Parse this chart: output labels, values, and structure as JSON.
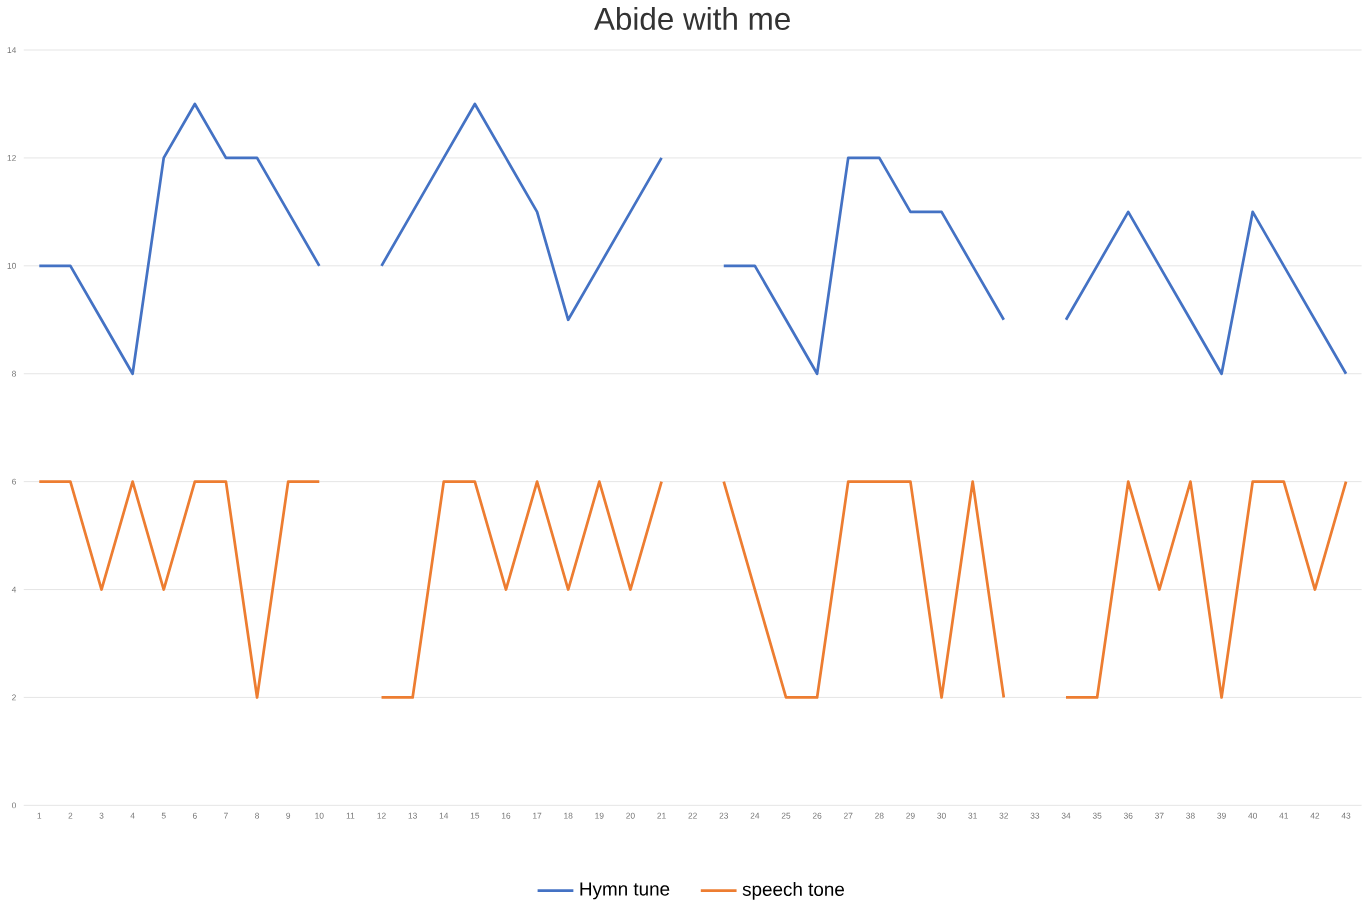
{
  "chart_data": {
    "type": "line",
    "title": "Abide with me",
    "categories": [
      "1",
      "2",
      "3",
      "4",
      "5",
      "6",
      "7",
      "8",
      "9",
      "10",
      "11",
      "12",
      "13",
      "14",
      "15",
      "16",
      "17",
      "18",
      "19",
      "20",
      "21",
      "22",
      "23",
      "24",
      "25",
      "26",
      "27",
      "28",
      "29",
      "30",
      "31",
      "32",
      "33",
      "34",
      "35",
      "36",
      "37",
      "38",
      "39",
      "40",
      "41",
      "42",
      "43"
    ],
    "series": [
      {
        "name": "Hymn tune",
        "color": "#4472c4",
        "values": [
          10,
          10,
          9,
          8,
          12,
          13,
          12,
          12,
          11,
          10,
          null,
          10,
          11,
          12,
          13,
          12,
          11,
          9,
          10,
          11,
          12,
          null,
          10,
          10,
          9,
          8,
          12,
          12,
          11,
          11,
          10,
          9,
          null,
          9,
          10,
          11,
          10,
          9,
          8,
          11,
          10,
          9,
          8
        ]
      },
      {
        "name": "speech tone",
        "color": "#ed7d31",
        "values": [
          6,
          6,
          4,
          6,
          4,
          6,
          6,
          2,
          6,
          6,
          null,
          2,
          2,
          6,
          6,
          4,
          6,
          4,
          6,
          4,
          6,
          null,
          6,
          4,
          2,
          2,
          6,
          6,
          6,
          2,
          6,
          2,
          null,
          2,
          2,
          6,
          4,
          6,
          2,
          6,
          6,
          4,
          6
        ]
      }
    ],
    "ylim": [
      0,
      14
    ],
    "yticks": [
      0,
      2,
      4,
      6,
      8,
      10,
      12,
      14
    ],
    "grid": "y",
    "legend": "bottom",
    "marker": "none",
    "line_style": "solid"
  }
}
